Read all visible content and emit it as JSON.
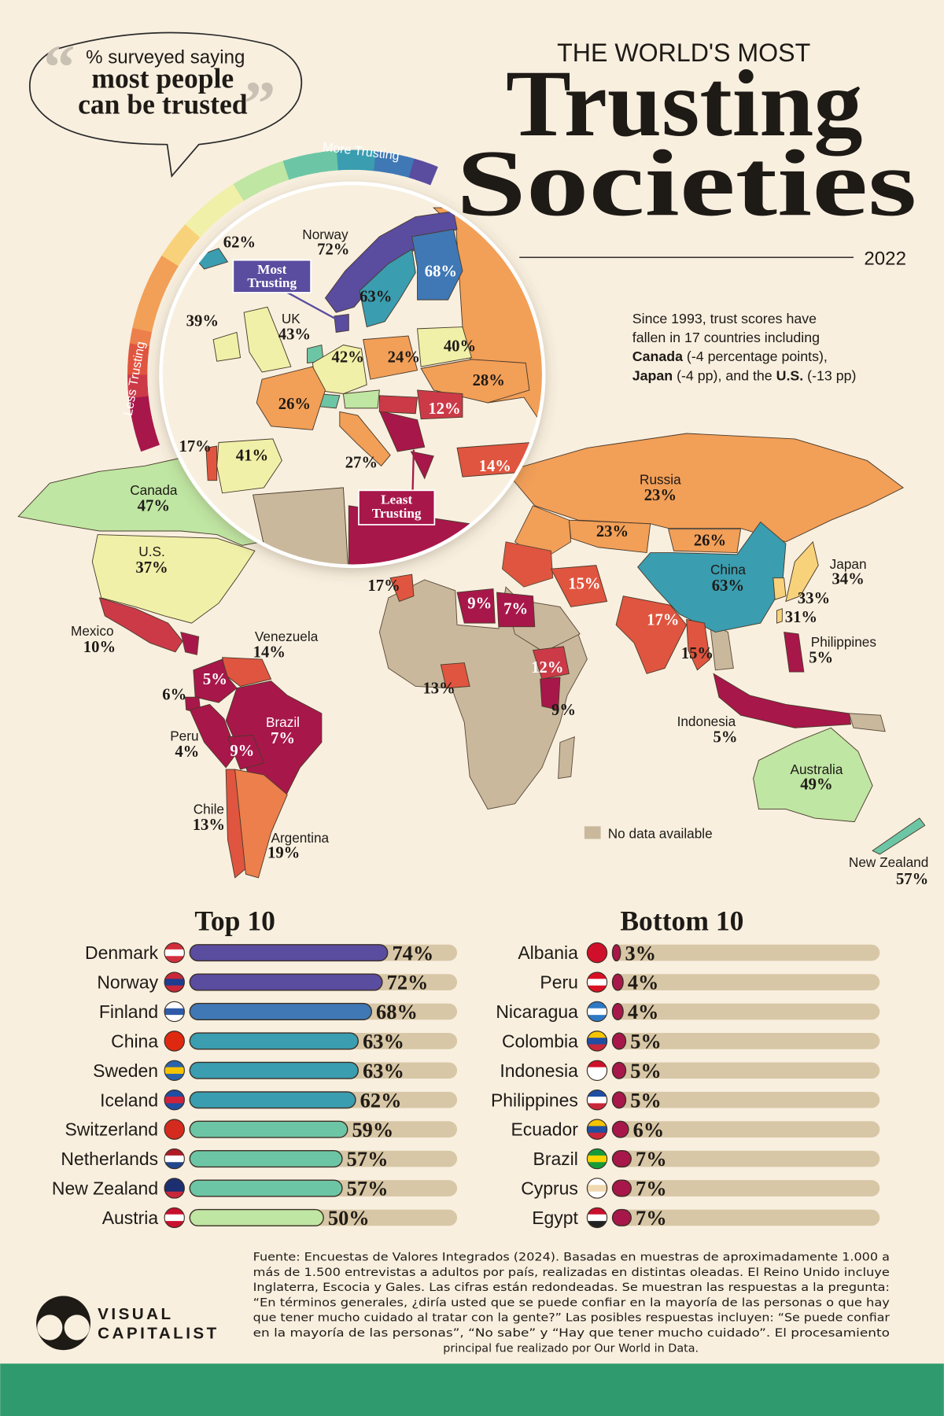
{
  "header": {
    "bubble": [
      "% surveyed saying",
      "most people",
      "can be trusted"
    ],
    "kicker": "THE WORLD'S MOST",
    "title1": "Trusting",
    "title2": "Societies",
    "year": "2022"
  },
  "scale": {
    "more": "More Trusting",
    "less": "Less Trusting"
  },
  "note": [
    [
      {
        "text": "Since 1993, trust scores have"
      }
    ],
    [
      {
        "text": "fallen in 17 countries including"
      }
    ],
    [
      {
        "text": "Canada",
        "bold": true
      },
      {
        "text": " (-4 percentage points),"
      }
    ],
    [
      {
        "text": "Japan",
        "bold": true
      },
      {
        "text": " (-4 pp), and the "
      },
      {
        "text": "U.S.",
        "bold": true
      },
      {
        "text": " (-13 pp)"
      }
    ]
  ],
  "map": {
    "callouts": {
      "most": [
        "Most",
        "Trusting"
      ],
      "least": [
        "Least",
        "Trusting"
      ]
    },
    "legend": "No data available",
    "europe": [
      {
        "value": 62,
        "label": "62%"
      },
      {
        "name": "Norway",
        "value": 72,
        "label": "72%"
      },
      {
        "value": 68,
        "label": "68%"
      },
      {
        "value": 63,
        "label": "63%"
      },
      {
        "value": 39,
        "label": "39%"
      },
      {
        "name": "UK",
        "value": 43,
        "label": "43%"
      },
      {
        "value": 42,
        "label": "42%"
      },
      {
        "value": 24,
        "label": "24%"
      },
      {
        "value": 40,
        "label": "40%"
      },
      {
        "value": 28,
        "label": "28%"
      },
      {
        "value": 26,
        "label": "26%"
      },
      {
        "value": 12,
        "label": "12%"
      },
      {
        "value": 17,
        "label": "17%"
      },
      {
        "value": 41,
        "label": "41%"
      },
      {
        "value": 27,
        "label": "27%"
      },
      {
        "value": 14,
        "label": "14%"
      }
    ],
    "world": [
      {
        "name": "Canada",
        "value": 47,
        "label": "47%"
      },
      {
        "name": "U.S.",
        "value": 37,
        "label": "37%"
      },
      {
        "name": "Mexico",
        "value": 10,
        "label": "10%"
      },
      {
        "name": "Venezuela",
        "value": 14,
        "label": "14%"
      },
      {
        "value": 5,
        "label": "5%"
      },
      {
        "value": 6,
        "label": "6%"
      },
      {
        "name": "Peru",
        "value": 4,
        "label": "4%"
      },
      {
        "name": "Brazil",
        "value": 7,
        "label": "7%"
      },
      {
        "value": 9,
        "label": "9%"
      },
      {
        "name": "Chile",
        "value": 13,
        "label": "13%"
      },
      {
        "name": "Argentina",
        "value": 19,
        "label": "19%"
      },
      {
        "name": "Russia",
        "value": 23,
        "label": "23%"
      },
      {
        "value": 23,
        "label": "23%"
      },
      {
        "value": 26,
        "label": "26%"
      },
      {
        "name": "China",
        "value": 63,
        "label": "63%"
      },
      {
        "name": "Japan",
        "value": 34,
        "label": "34%"
      },
      {
        "value": 33,
        "label": "33%"
      },
      {
        "value": 31,
        "label": "31%"
      },
      {
        "name": "Philippines",
        "value": 5,
        "label": "5%"
      },
      {
        "value": 15,
        "label": "15%"
      },
      {
        "value": 17,
        "label": "17%"
      },
      {
        "value": 15,
        "label": "15%"
      },
      {
        "name": "Indonesia",
        "value": 5,
        "label": "5%"
      },
      {
        "name": "Australia",
        "value": 49,
        "label": "49%"
      },
      {
        "name": "New Zealand",
        "value": 57,
        "label": "57%"
      },
      {
        "value": 17,
        "label": "17%"
      },
      {
        "value": 9,
        "label": "9%"
      },
      {
        "value": 7,
        "label": "7%"
      },
      {
        "value": 12,
        "label": "12%"
      },
      {
        "value": 9,
        "label": "9%"
      },
      {
        "value": 13,
        "label": "13%"
      }
    ]
  },
  "chart_data": [
    {
      "type": "bar",
      "orientation": "horizontal",
      "title": "Top 10",
      "categories": [
        "Denmark",
        "Norway",
        "Finland",
        "China",
        "Sweden",
        "Iceland",
        "Switzerland",
        "Netherlands",
        "New Zealand",
        "Austria"
      ],
      "values": [
        74,
        72,
        68,
        63,
        63,
        62,
        59,
        57,
        57,
        50
      ],
      "value_labels": [
        "74%",
        "72%",
        "68%",
        "63%",
        "63%",
        "62%",
        "59%",
        "57%",
        "57%",
        "50%"
      ],
      "xlim": [
        0,
        100
      ]
    },
    {
      "type": "bar",
      "orientation": "horizontal",
      "title": "Bottom 10",
      "categories": [
        "Albania",
        "Peru",
        "Nicaragua",
        "Colombia",
        "Indonesia",
        "Philippines",
        "Ecuador",
        "Brazil",
        "Cyprus",
        "Egypt"
      ],
      "values": [
        3,
        4,
        4,
        5,
        5,
        5,
        6,
        7,
        7,
        7
      ],
      "value_labels": [
        "3%",
        "4%",
        "4%",
        "5%",
        "5%",
        "5%",
        "6%",
        "7%",
        "7%",
        "7%"
      ],
      "xlim": [
        0,
        100
      ]
    }
  ],
  "footer": {
    "source": [
      "Fuente: Encuestas de Valores Integrados (2024). Basadas en muestras de aproximadamente 1.000 a",
      "más de 1.500 entrevistas a adultos por país, realizadas en distintas oleadas. El Reino Unido incluye",
      "Inglaterra, Escocia y Gales. Las cifras están redondeadas. Se muestran las respuestas a la pregunta:",
      "“En términos generales, ¿diría usted que se puede confiar en la mayoría de las personas o que hay",
      "que tener mucho cuidado al tratar con la gente?” Las posibles respuestas incluyen: “Se puede confiar",
      "en la mayoría de las personas”, “No sabe” y “Hay que tener mucho cuidado”. El procesamiento",
      "principal fue realizado por Our World in Data."
    ],
    "logo": [
      "VISUAL",
      "CAPITALIST"
    ]
  }
}
